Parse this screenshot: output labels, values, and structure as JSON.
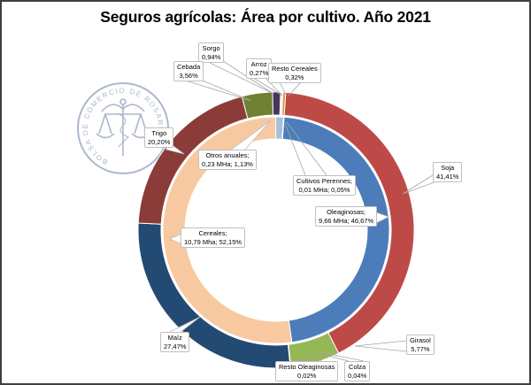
{
  "title": "Seguros agrícolas: Área por cultivo. Año 2021",
  "logo": {
    "text": "BOLSA DE COMERCIO DE ROSARIO",
    "color": "#ABB8CE"
  },
  "chart_data": {
    "type": "donut",
    "title": "Seguros agrícolas: Área por cultivo. Año 2021",
    "start_angle_deg": 4,
    "legend_position": "none",
    "rings": [
      {
        "id": "outer",
        "name": "cultivos",
        "slices": [
          {
            "id": "soja",
            "label": "Soja",
            "pct": 41.41,
            "display": "41,41%",
            "color": "#BE4A47"
          },
          {
            "id": "girasol",
            "label": "Girasol",
            "pct": 5.77,
            "display": "5,77%",
            "color": "#95B754"
          },
          {
            "id": "colza",
            "label": "Colza",
            "pct": 0.04,
            "display": "0,04%",
            "color": "#C3D69B"
          },
          {
            "id": "resto-oleaginosas",
            "label": "Resto Oleaginosas",
            "pct": 0.02,
            "display": "0,02%",
            "color": "#B3A2C7"
          },
          {
            "id": "maiz",
            "label": "Maíz",
            "pct": 27.47,
            "display": "27,47%",
            "color": "#234A73"
          },
          {
            "id": "trigo",
            "label": "Trigo",
            "pct": 20.2,
            "display": "20,20%",
            "color": "#8B3C38"
          },
          {
            "id": "cebada",
            "label": "Cebada",
            "pct": 3.56,
            "display": "3,56%",
            "color": "#6F8030"
          },
          {
            "id": "sorgo",
            "label": "Sorgo",
            "pct": 0.94,
            "display": "0,94%",
            "color": "#45365A"
          },
          {
            "id": "arroz",
            "label": "Arroz",
            "pct": 0.27,
            "display": "0,27%",
            "color": "#EDEDF2"
          },
          {
            "id": "resto-cereales",
            "label": "Resto Cereales",
            "pct": 0.32,
            "display": "0,32%",
            "color": "#E8923C"
          }
        ]
      },
      {
        "id": "inner",
        "name": "grupos",
        "slices": [
          {
            "id": "oleaginosas",
            "label": "Oleaginosas",
            "area": "9,66 MHa",
            "pct": 46.67,
            "display": "9,66 MHa; 46,67%",
            "color": "#4C7DBA"
          },
          {
            "id": "cereales",
            "label": "Cereales",
            "area": "10,79 Mha",
            "pct": 52.15,
            "display": "10,79 Mha; 52,15%",
            "color": "#F8C9A0"
          },
          {
            "id": "otros-anuales",
            "label": "Otros anuales",
            "area": "0,23 MHa",
            "pct": 1.13,
            "display": "0,23 MHa; 1,13%",
            "color": "#A6C0DC"
          },
          {
            "id": "cultivos-perennes",
            "label": "Cultivos Perennes",
            "area": "0,01 MHa",
            "pct": 0.05,
            "display": "0,01 MHa; 0,05%",
            "color": "#D8D8D8"
          }
        ]
      }
    ],
    "callouts": [
      {
        "id": "sorgo",
        "line1": "Sorgo",
        "line2": "0,94%"
      },
      {
        "id": "cebada",
        "line1": "Cebada",
        "line2": "3,56%"
      },
      {
        "id": "arroz",
        "line1": "Arroz",
        "line2": "0,27%"
      },
      {
        "id": "resto-cereales",
        "line1": "Resto Cereales",
        "line2": "0,32%"
      },
      {
        "id": "trigo",
        "line1": "Trigo",
        "line2": "20,20%"
      },
      {
        "id": "otros-anuales",
        "line1": "Otros anuales;",
        "line2": "0,23 MHa; 1,13%"
      },
      {
        "id": "cultivos-perennes",
        "line1": "Cultivos Perennes;",
        "line2": "0,01 MHa; 0,05%"
      },
      {
        "id": "oleaginosas",
        "line1": "Oleaginosas;",
        "line2": "9,66 MHa; 46,67%"
      },
      {
        "id": "soja",
        "line1": "Soja",
        "line2": "41,41%"
      },
      {
        "id": "cereales",
        "line1": "Cereales;",
        "line2": "10,79 Mha; 52,15%"
      },
      {
        "id": "maiz",
        "line1": "Maíz",
        "line2": "27,47%"
      },
      {
        "id": "resto-oleaginosas",
        "line1": "Resto Oleaginosas",
        "line2": "0,02%"
      },
      {
        "id": "colza",
        "line1": "Colza",
        "line2": "0,04%"
      },
      {
        "id": "girasol",
        "line1": "Girasol",
        "line2": "5,77%"
      }
    ]
  }
}
